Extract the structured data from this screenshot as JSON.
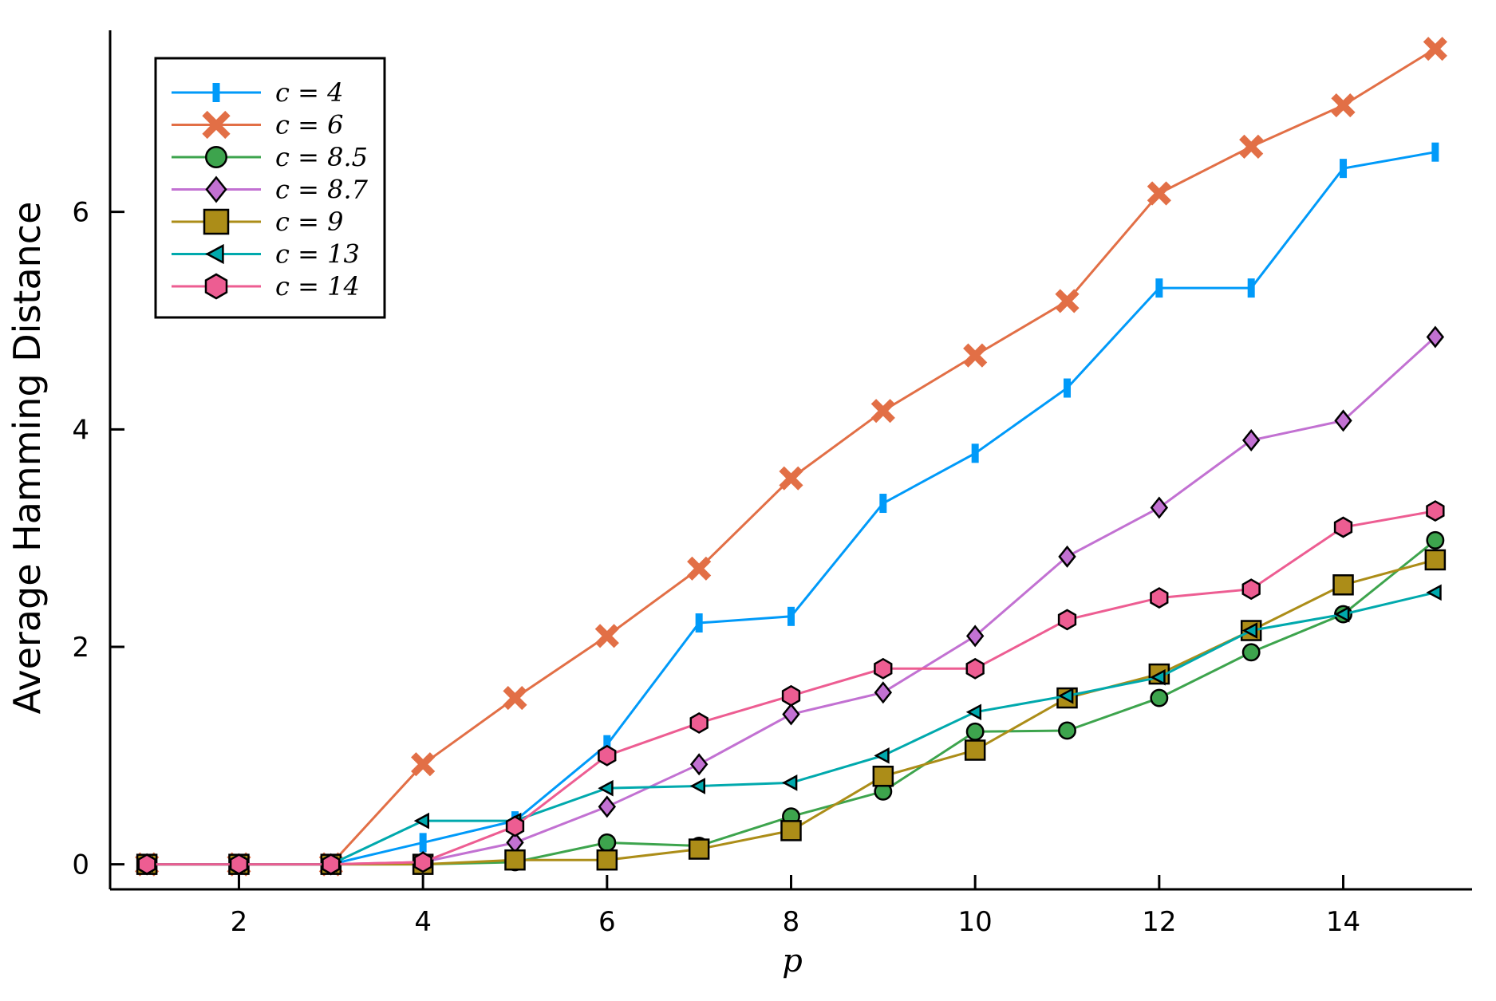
{
  "chart_data": {
    "type": "line",
    "title": "",
    "xlabel": "p",
    "ylabel": "Average Hamming Distance",
    "xlim": [
      0.6,
      15.4
    ],
    "ylim": [
      -0.23,
      7.67
    ],
    "x_ticks": [
      2,
      4,
      6,
      8,
      10,
      12,
      14
    ],
    "y_ticks": [
      0,
      2,
      4,
      6
    ],
    "x_tick_labels": [
      "2",
      "4",
      "6",
      "8",
      "10",
      "12",
      "14"
    ],
    "y_tick_labels": [
      "0",
      "2",
      "4",
      "6"
    ],
    "grid": false,
    "legend_position": "top-left",
    "x": [
      1,
      2,
      3,
      4,
      5,
      6,
      7,
      8,
      9,
      10,
      11,
      12,
      13,
      14,
      15
    ],
    "series": [
      {
        "name": "c = 4",
        "color": "#009af9",
        "marker": "vline",
        "values": [
          0,
          0,
          0,
          0.2,
          0.4,
          1.1,
          2.22,
          2.28,
          3.32,
          3.78,
          4.38,
          5.3,
          5.3,
          6.4,
          6.55
        ]
      },
      {
        "name": "c = 6",
        "color": "#e26f46",
        "marker": "xcross",
        "values": [
          0,
          0,
          0,
          0.92,
          1.53,
          2.1,
          2.72,
          3.55,
          4.17,
          4.68,
          5.18,
          6.17,
          6.6,
          6.98,
          7.5
        ]
      },
      {
        "name": "c = 8.5",
        "color": "#3da44d",
        "marker": "circle",
        "values": [
          0,
          0,
          0,
          0,
          0.02,
          0.2,
          0.17,
          0.44,
          0.67,
          1.22,
          1.23,
          1.53,
          1.95,
          2.3,
          2.98
        ]
      },
      {
        "name": "c = 8.7",
        "color": "#c271d2",
        "marker": "diamond",
        "values": [
          0,
          0,
          0,
          0.02,
          0.2,
          0.53,
          0.92,
          1.38,
          1.58,
          2.1,
          2.83,
          3.28,
          3.9,
          4.08,
          4.85
        ]
      },
      {
        "name": "c = 9",
        "color": "#ac8d18",
        "marker": "square",
        "values": [
          0,
          0,
          0,
          0,
          0.04,
          0.04,
          0.14,
          0.31,
          0.81,
          1.05,
          1.53,
          1.75,
          2.15,
          2.57,
          2.8
        ]
      },
      {
        "name": "c = 13",
        "color": "#00a9ad",
        "marker": "ltriangle",
        "values": [
          0,
          0,
          0,
          0.4,
          0.4,
          0.7,
          0.72,
          0.75,
          1.0,
          1.4,
          1.55,
          1.72,
          2.15,
          2.3,
          2.5
        ]
      },
      {
        "name": "c = 14",
        "color": "#ed5d92",
        "marker": "hexagon",
        "values": [
          0,
          0,
          0,
          0.02,
          0.35,
          1.0,
          1.3,
          1.55,
          1.8,
          1.8,
          2.25,
          2.45,
          2.53,
          3.1,
          3.25
        ]
      }
    ]
  }
}
